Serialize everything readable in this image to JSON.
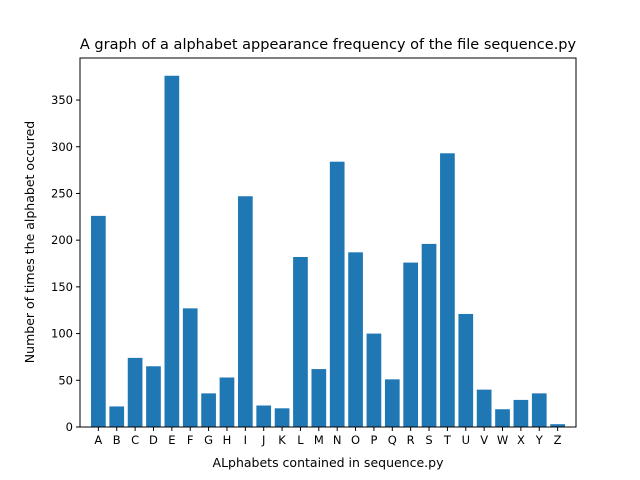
{
  "chart_data": {
    "type": "bar",
    "title": "A graph of a alphabet appearance frequency of the file sequence.py",
    "xlabel": "ALphabets contained in sequence.py",
    "ylabel": "Number of times the alphabet occured",
    "categories": [
      "A",
      "B",
      "C",
      "D",
      "E",
      "F",
      "G",
      "H",
      "I",
      "J",
      "K",
      "L",
      "M",
      "N",
      "O",
      "P",
      "Q",
      "R",
      "S",
      "T",
      "U",
      "V",
      "W",
      "X",
      "Y",
      "Z"
    ],
    "values": [
      226,
      22,
      74,
      65,
      376,
      127,
      36,
      53,
      247,
      23,
      20,
      182,
      62,
      284,
      187,
      100,
      51,
      176,
      196,
      293,
      121,
      40,
      19,
      29,
      36,
      3
    ],
    "ylim": [
      0,
      395
    ],
    "yticks": [
      0,
      50,
      100,
      150,
      200,
      250,
      300,
      350
    ],
    "bar_color": "#1f77b4",
    "grid": false,
    "legend": false
  }
}
